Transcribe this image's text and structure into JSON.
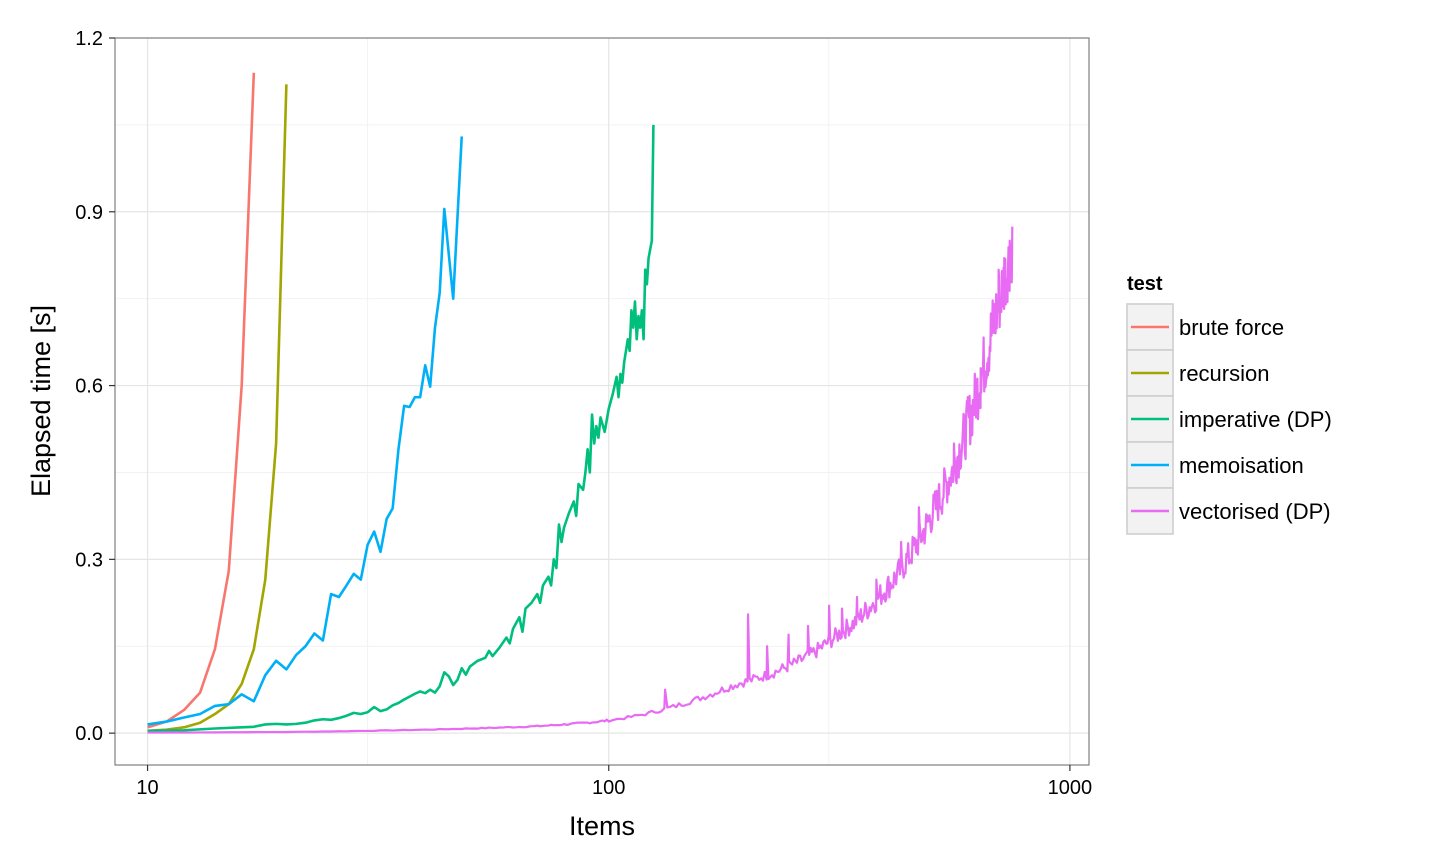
{
  "chart_data": {
    "type": "line",
    "xlabel": "Items",
    "ylabel": "Elapsed time [s]",
    "x_scale": "log10",
    "xlim": [
      8.5,
      1100
    ],
    "ylim": [
      -0.055,
      1.2
    ],
    "x_ticks": [
      {
        "value": 10,
        "label": "10"
      },
      {
        "value": 100,
        "label": "100"
      },
      {
        "value": 1000,
        "label": "1000"
      }
    ],
    "y_ticks": [
      {
        "value": 0.0,
        "label": "0.0"
      },
      {
        "value": 0.3,
        "label": "0.3"
      },
      {
        "value": 0.6,
        "label": "0.6"
      },
      {
        "value": 0.9,
        "label": "0.9"
      },
      {
        "value": 1.2,
        "label": "1.2"
      }
    ],
    "grid": true,
    "legend": {
      "title": "test",
      "placement": "right"
    },
    "series": [
      {
        "name": "brute force",
        "color": "#F8766D",
        "points": [
          [
            10,
            0.01
          ],
          [
            11,
            0.02
          ],
          [
            12,
            0.04
          ],
          [
            13,
            0.07
          ],
          [
            14,
            0.145
          ],
          [
            15,
            0.28
          ],
          [
            16,
            0.6
          ],
          [
            17,
            1.14
          ]
        ]
      },
      {
        "name": "recursion",
        "color": "#A3A500",
        "points": [
          [
            10,
            0.004
          ],
          [
            11,
            0.006
          ],
          [
            12,
            0.01
          ],
          [
            13,
            0.018
          ],
          [
            14,
            0.033
          ],
          [
            15,
            0.05
          ],
          [
            16,
            0.085
          ],
          [
            17,
            0.145
          ],
          [
            18,
            0.265
          ],
          [
            19,
            0.5
          ],
          [
            20,
            1.12
          ]
        ]
      },
      {
        "name": "imperative (DP)",
        "color": "#00BF7D",
        "points": [
          [
            10,
            0.004
          ],
          [
            12,
            0.005
          ],
          [
            14,
            0.008
          ],
          [
            16,
            0.01
          ],
          [
            17,
            0.011
          ],
          [
            18,
            0.015
          ],
          [
            19,
            0.016
          ],
          [
            20,
            0.015
          ],
          [
            21,
            0.016
          ],
          [
            22,
            0.018
          ],
          [
            23,
            0.022
          ],
          [
            24,
            0.024
          ],
          [
            25,
            0.023
          ],
          [
            26,
            0.026
          ],
          [
            27,
            0.03
          ],
          [
            28,
            0.035
          ],
          [
            29,
            0.033
          ],
          [
            30,
            0.036
          ],
          [
            31,
            0.045
          ],
          [
            32,
            0.038
          ],
          [
            33,
            0.041
          ],
          [
            34,
            0.048
          ],
          [
            35,
            0.052
          ],
          [
            36,
            0.058
          ],
          [
            37,
            0.063
          ],
          [
            38,
            0.068
          ],
          [
            39,
            0.072
          ],
          [
            40,
            0.069
          ],
          [
            41,
            0.075
          ],
          [
            42,
            0.07
          ],
          [
            43,
            0.081
          ],
          [
            44,
            0.105
          ],
          [
            45,
            0.098
          ],
          [
            46,
            0.083
          ],
          [
            47,
            0.092
          ],
          [
            48,
            0.112
          ],
          [
            49,
            0.101
          ],
          [
            50,
            0.115
          ],
          [
            52,
            0.125
          ],
          [
            54,
            0.13
          ],
          [
            55,
            0.142
          ],
          [
            56,
            0.133
          ],
          [
            58,
            0.148
          ],
          [
            60,
            0.165
          ],
          [
            61,
            0.155
          ],
          [
            62,
            0.18
          ],
          [
            64,
            0.2
          ],
          [
            65,
            0.175
          ],
          [
            66,
            0.215
          ],
          [
            68,
            0.225
          ],
          [
            70,
            0.24
          ],
          [
            71,
            0.225
          ],
          [
            72,
            0.255
          ],
          [
            74,
            0.27
          ],
          [
            75,
            0.255
          ],
          [
            76,
            0.3
          ],
          [
            77,
            0.285
          ],
          [
            78,
            0.36
          ],
          [
            79,
            0.33
          ],
          [
            80,
            0.355
          ],
          [
            82,
            0.38
          ],
          [
            84,
            0.4
          ],
          [
            85,
            0.375
          ],
          [
            86,
            0.43
          ],
          [
            88,
            0.42
          ],
          [
            89,
            0.45
          ],
          [
            90,
            0.49
          ],
          [
            91,
            0.45
          ],
          [
            92,
            0.55
          ],
          [
            93,
            0.5
          ],
          [
            94,
            0.53
          ],
          [
            95,
            0.51
          ],
          [
            96,
            0.545
          ],
          [
            98,
            0.52
          ],
          [
            100,
            0.56
          ],
          [
            102,
            0.585
          ],
          [
            104,
            0.615
          ],
          [
            105,
            0.58
          ],
          [
            106,
            0.62
          ],
          [
            107,
            0.605
          ],
          [
            108,
            0.64
          ],
          [
            110,
            0.68
          ],
          [
            111,
            0.66
          ],
          [
            112,
            0.73
          ],
          [
            113,
            0.7
          ],
          [
            114,
            0.745
          ],
          [
            115,
            0.68
          ],
          [
            116,
            0.72
          ],
          [
            117,
            0.7
          ],
          [
            118,
            0.73
          ],
          [
            119,
            0.68
          ],
          [
            120,
            0.8
          ],
          [
            121,
            0.775
          ],
          [
            122,
            0.82
          ],
          [
            124,
            0.85
          ],
          [
            125,
            1.05
          ]
        ]
      },
      {
        "name": "memoisation",
        "color": "#00B0F6",
        "points": [
          [
            10,
            0.015
          ],
          [
            11,
            0.02
          ],
          [
            12,
            0.027
          ],
          [
            13,
            0.033
          ],
          [
            14,
            0.047
          ],
          [
            15,
            0.05
          ],
          [
            16,
            0.067
          ],
          [
            17,
            0.055
          ],
          [
            18,
            0.1
          ],
          [
            19,
            0.125
          ],
          [
            20,
            0.11
          ],
          [
            21,
            0.135
          ],
          [
            22,
            0.15
          ],
          [
            23,
            0.172
          ],
          [
            24,
            0.16
          ],
          [
            25,
            0.24
          ],
          [
            26,
            0.235
          ],
          [
            27,
            0.255
          ],
          [
            28,
            0.275
          ],
          [
            29,
            0.265
          ],
          [
            30,
            0.325
          ],
          [
            31,
            0.348
          ],
          [
            32,
            0.313
          ],
          [
            33,
            0.37
          ],
          [
            34,
            0.388
          ],
          [
            35,
            0.49
          ],
          [
            36,
            0.565
          ],
          [
            37,
            0.563
          ],
          [
            38,
            0.58
          ],
          [
            39,
            0.58
          ],
          [
            40,
            0.635
          ],
          [
            41,
            0.598
          ],
          [
            42,
            0.7
          ],
          [
            43,
            0.76
          ],
          [
            44,
            0.905
          ],
          [
            46,
            0.75
          ],
          [
            48,
            1.03
          ]
        ]
      },
      {
        "name": "vectorised (DP)",
        "color": "#E76BF3",
        "noisy": true,
        "points": [
          [
            10,
            0.001
          ],
          [
            20,
            0.002
          ],
          [
            30,
            0.004
          ],
          [
            40,
            0.006
          ],
          [
            50,
            0.008
          ],
          [
            60,
            0.01
          ],
          [
            70,
            0.012
          ],
          [
            80,
            0.015
          ],
          [
            90,
            0.018
          ],
          [
            100,
            0.022
          ],
          [
            110,
            0.027
          ],
          [
            120,
            0.033
          ],
          [
            130,
            0.04
          ],
          [
            140,
            0.047
          ],
          [
            150,
            0.055
          ],
          [
            160,
            0.062
          ],
          [
            170,
            0.07
          ],
          [
            180,
            0.078
          ],
          [
            190,
            0.085
          ],
          [
            200,
            0.09
          ],
          [
            220,
            0.1
          ],
          [
            240,
            0.112
          ],
          [
            260,
            0.125
          ],
          [
            280,
            0.14
          ],
          [
            300,
            0.158
          ],
          [
            320,
            0.175
          ],
          [
            340,
            0.19
          ],
          [
            360,
            0.21
          ],
          [
            380,
            0.23
          ],
          [
            400,
            0.25
          ],
          [
            420,
            0.27
          ],
          [
            440,
            0.295
          ],
          [
            460,
            0.32
          ],
          [
            480,
            0.345
          ],
          [
            500,
            0.375
          ],
          [
            520,
            0.4
          ],
          [
            540,
            0.43
          ],
          [
            560,
            0.46
          ],
          [
            580,
            0.495
          ],
          [
            600,
            0.53
          ],
          [
            620,
            0.57
          ],
          [
            640,
            0.61
          ],
          [
            660,
            0.655
          ],
          [
            680,
            0.7
          ],
          [
            700,
            0.74
          ],
          [
            720,
            0.78
          ],
          [
            740,
            0.82
          ],
          [
            750,
            0.84
          ]
        ],
        "spikes": [
          [
            132,
            0.075
          ],
          [
            200,
            0.205
          ],
          [
            220,
            0.15
          ],
          [
            245,
            0.17
          ],
          [
            270,
            0.185
          ],
          [
            300,
            0.22
          ],
          [
            320,
            0.215
          ],
          [
            345,
            0.235
          ],
          [
            380,
            0.265
          ],
          [
            430,
            0.33
          ],
          [
            470,
            0.39
          ],
          [
            520,
            0.43
          ],
          [
            560,
            0.5
          ],
          [
            600,
            0.58
          ],
          [
            640,
            0.63
          ],
          [
            680,
            0.73
          ],
          [
            700,
            0.8
          ],
          [
            720,
            0.82
          ],
          [
            740,
            0.85
          ]
        ]
      }
    ]
  }
}
